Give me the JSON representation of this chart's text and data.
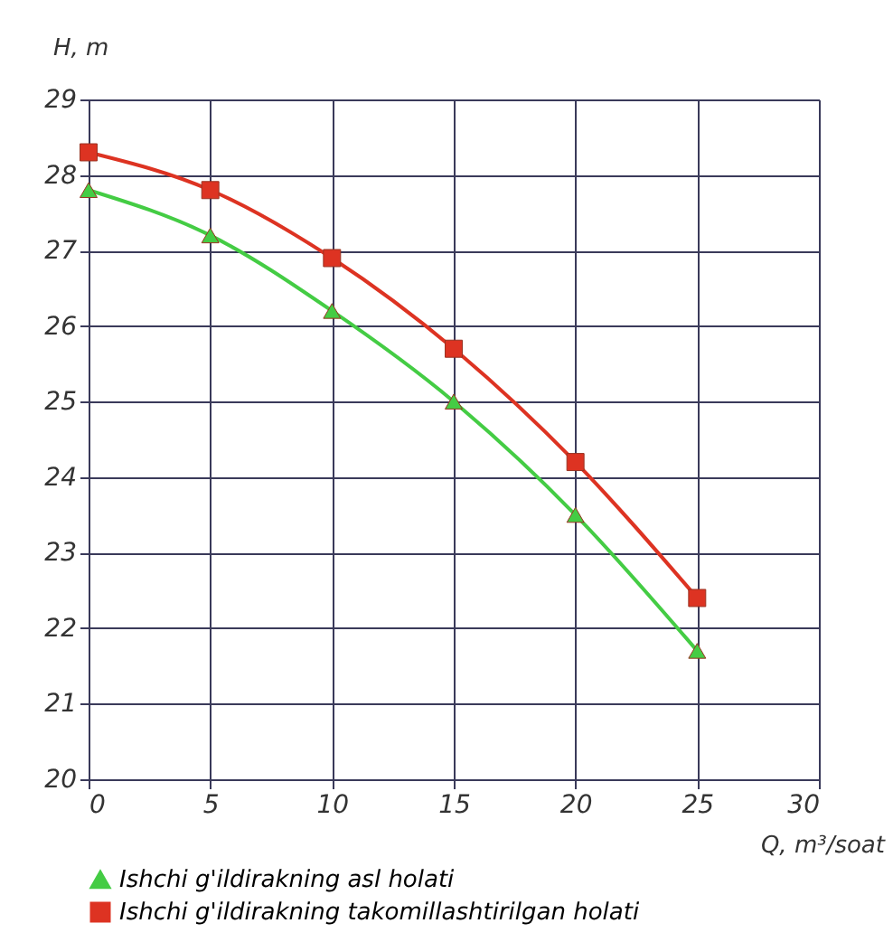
{
  "chart_data": {
    "type": "line",
    "xlabel": "Q, m³/soat",
    "ylabel": "H, m",
    "x": [
      0,
      5,
      10,
      15,
      20,
      25
    ],
    "xlim": [
      0,
      30
    ],
    "xticks": [
      0,
      5,
      10,
      15,
      20,
      25,
      30
    ],
    "ylim": [
      20,
      29
    ],
    "yticks": [
      20,
      21,
      22,
      23,
      24,
      25,
      26,
      27,
      28,
      29
    ],
    "grid": true,
    "legend": "bottom",
    "line_style": "solid",
    "series": [
      {
        "name": "Ishchi g'ildirakning asl holati",
        "color": "#44cc44",
        "marker": "triangle",
        "values": [
          27.8,
          27.2,
          26.2,
          25.0,
          23.5,
          21.7
        ]
      },
      {
        "name": "Ishchi g'ildirakning takomillashtirilgan holati",
        "color": "#dd3322",
        "marker": "square",
        "values": [
          28.3,
          27.8,
          26.9,
          25.7,
          24.2,
          22.4
        ]
      }
    ]
  }
}
